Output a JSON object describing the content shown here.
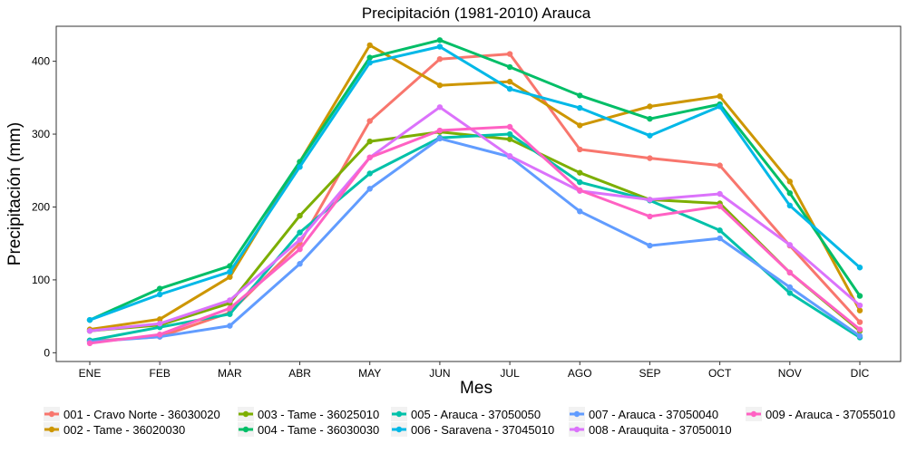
{
  "chart_data": {
    "type": "line",
    "title": "Precipitación (1981-2010)  Arauca",
    "xlabel": "Mes",
    "ylabel": "Precipitación (mm)",
    "categories": [
      "ENE",
      "FEB",
      "MAR",
      "ABR",
      "MAY",
      "JUN",
      "JUL",
      "AGO",
      "SEP",
      "OCT",
      "NOV",
      "DIC"
    ],
    "ylim": [
      -12,
      448
    ],
    "yticks": [
      0,
      100,
      200,
      300,
      400
    ],
    "grid": false,
    "legend_position": "bottom",
    "series": [
      {
        "name": "001 - Cravo Norte - 36030020",
        "color": "#F8766D",
        "values": [
          16,
          22,
          55,
          150,
          318,
          403,
          410,
          279,
          267,
          257,
          147,
          42
        ]
      },
      {
        "name": "002 - Tame - 36020030",
        "color": "#CD9600",
        "values": [
          32,
          46,
          104,
          262,
          422,
          367,
          372,
          312,
          338,
          352,
          235,
          58
        ]
      },
      {
        "name": "003 - Tame - 36025010",
        "color": "#7CAE00",
        "values": [
          30,
          38,
          68,
          188,
          290,
          303,
          293,
          247,
          210,
          205,
          110,
          30
        ]
      },
      {
        "name": "004 - Tame - 36030030",
        "color": "#00BE67",
        "values": [
          45,
          88,
          119,
          262,
          405,
          429,
          392,
          353,
          321,
          341,
          219,
          78
        ]
      },
      {
        "name": "005 - Arauca - 37050050",
        "color": "#00C1A9",
        "values": [
          17,
          35,
          53,
          165,
          246,
          295,
          300,
          234,
          209,
          168,
          82,
          21
        ]
      },
      {
        "name": "006 - Saravena - 37045010",
        "color": "#00B8E7",
        "values": [
          45,
          80,
          111,
          255,
          398,
          420,
          362,
          336,
          298,
          338,
          202,
          117
        ]
      },
      {
        "name": "007 - Arauca - 37050040",
        "color": "#619CFF",
        "values": [
          15,
          22,
          37,
          122,
          225,
          294,
          269,
          194,
          147,
          157,
          90,
          23
        ]
      },
      {
        "name": "008 - Arauquita - 37050010",
        "color": "#DB72FB",
        "values": [
          30,
          40,
          72,
          155,
          268,
          337,
          270,
          222,
          210,
          218,
          148,
          65
        ]
      },
      {
        "name": "009 - Arauca - 37055010",
        "color": "#FF61C3",
        "values": [
          13,
          25,
          61,
          142,
          268,
          305,
          310,
          223,
          187,
          201,
          110,
          32
        ]
      }
    ]
  }
}
